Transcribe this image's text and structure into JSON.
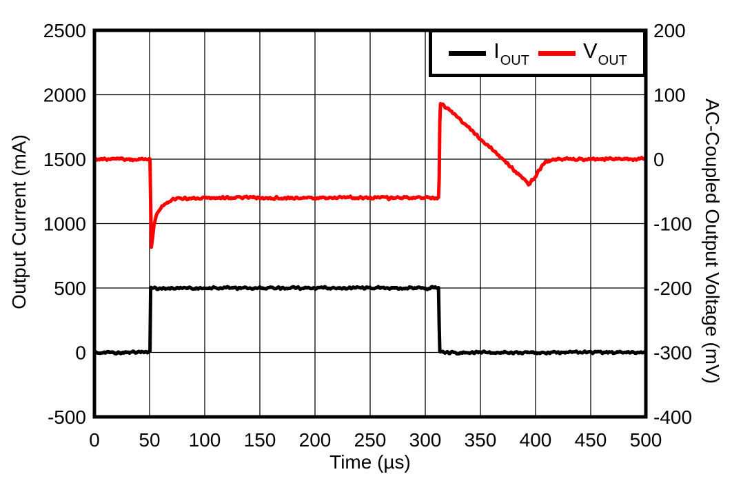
{
  "colors": {
    "background": "#ffffff",
    "frame": "#000000",
    "grid": "#000000",
    "iout_trace": "#000000",
    "vout_trace": "#ff0000"
  },
  "chart_data": {
    "type": "line",
    "title": "",
    "xlabel": "Time (µs)",
    "ylabel_left": "Output Current (mA)",
    "ylabel_right": "AC-Coupled Output Voltage (mV)",
    "xlim": [
      0,
      500
    ],
    "ylim_left": [
      -500,
      2500
    ],
    "ylim_right": [
      -400,
      200
    ],
    "x_ticks": [
      0,
      50,
      100,
      150,
      200,
      250,
      300,
      350,
      400,
      450,
      500
    ],
    "y_ticks_left": [
      -500,
      0,
      500,
      1000,
      1500,
      2000,
      2500
    ],
    "y_ticks_right": [
      -400,
      -300,
      -200,
      -100,
      0,
      100,
      200
    ],
    "grid": true,
    "legend_position": "top-right",
    "legend": [
      {
        "main": "I",
        "sub": "OUT",
        "series": "iout"
      },
      {
        "main": "V",
        "sub": "OUT",
        "series": "vout"
      }
    ],
    "series": [
      {
        "id": "iout",
        "name": "IOUT",
        "axis": "left",
        "units": "mA",
        "color": "#000000",
        "noise_amp_units": 13,
        "points": [
          [
            0,
            0
          ],
          [
            50.4,
            0
          ],
          [
            50.9,
            500
          ],
          [
            312.3,
            500
          ],
          [
            312.8,
            0
          ],
          [
            500,
            0
          ]
        ]
      },
      {
        "id": "vout",
        "name": "VOUT",
        "axis": "right",
        "units": "mV",
        "color": "#ff0000",
        "noise_amp_units": 3,
        "points": [
          [
            0,
            0
          ],
          [
            50.6,
            0
          ],
          [
            51.4,
            -140
          ],
          [
            52.5,
            -126
          ],
          [
            54,
            -100
          ],
          [
            56,
            -88
          ],
          [
            58.5,
            -79
          ],
          [
            62,
            -72
          ],
          [
            66,
            -67
          ],
          [
            71,
            -63
          ],
          [
            78,
            -61
          ],
          [
            88,
            -60
          ],
          [
            312.4,
            -60
          ],
          [
            313.4,
            88
          ],
          [
            318,
            82
          ],
          [
            330,
            63
          ],
          [
            345,
            40
          ],
          [
            360,
            16
          ],
          [
            375,
            -8
          ],
          [
            385,
            -24
          ],
          [
            390,
            -32
          ],
          [
            394,
            -40
          ],
          [
            398,
            -31
          ],
          [
            402,
            -20
          ],
          [
            406,
            -10
          ],
          [
            410,
            -4
          ],
          [
            415,
            -1
          ],
          [
            420,
            0
          ],
          [
            500,
            0
          ]
        ]
      }
    ]
  }
}
